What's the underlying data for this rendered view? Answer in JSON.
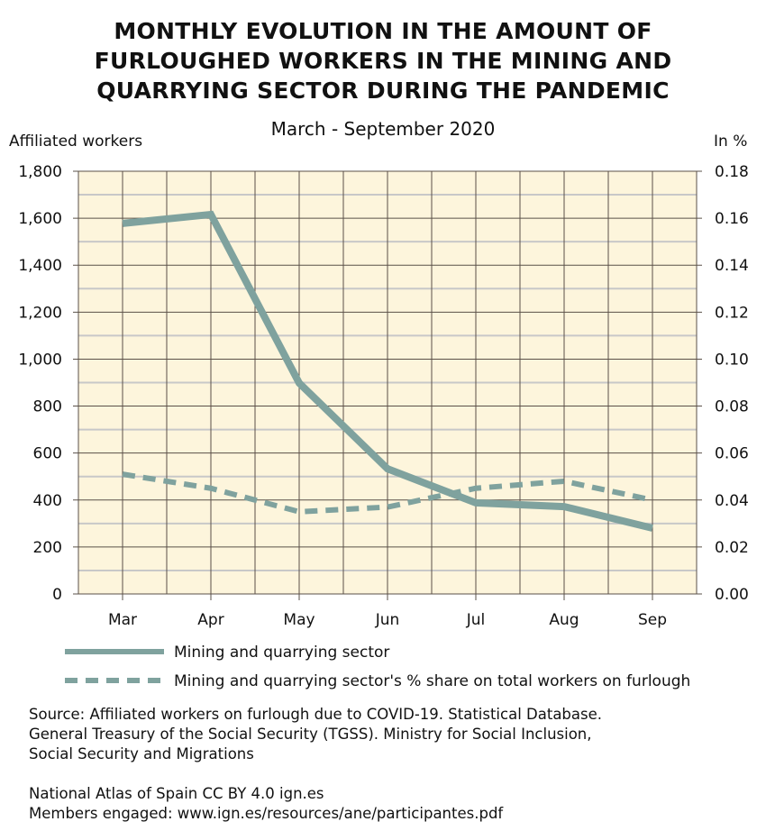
{
  "chart_data": {
    "type": "line",
    "title": "MONTHLY EVOLUTION IN THE AMOUNT OF FURLOUGHED WORKERS IN THE MINING AND QUARRYING SECTOR DURING THE PANDEMIC",
    "title_lines": [
      "MONTHLY EVOLUTION IN THE AMOUNT OF",
      "FURLOUGHED WORKERS IN THE MINING AND",
      "QUARRYING SECTOR DURING THE PANDEMIC"
    ],
    "subtitle": "March - September 2020",
    "ylabel_left": "Affiliated workers",
    "ylabel_right": "In %",
    "categories": [
      "Mar",
      "Apr",
      "May",
      "Jun",
      "Jul",
      "Aug",
      "Sep"
    ],
    "ylim_left": [
      0,
      1800
    ],
    "ylim_right": [
      0,
      0.18
    ],
    "yticks_left": [
      "0",
      "200",
      "400",
      "600",
      "800",
      "1,000",
      "1,200",
      "1,400",
      "1,600",
      "1,800"
    ],
    "yticks_right": [
      "0.00",
      "0.02",
      "0.04",
      "0.06",
      "0.08",
      "0.10",
      "0.12",
      "0.14",
      "0.16",
      "0.18"
    ],
    "grid": true,
    "legend_placement": "bottom",
    "series": [
      {
        "name": "Mining and quarrying sector",
        "axis": "left",
        "style": "solid",
        "color": "#7fa29e",
        "values": [
          1578,
          1616,
          898,
          533,
          388,
          372,
          280
        ]
      },
      {
        "name": "Mining and quarrying sector's % share on total workers on furlough",
        "axis": "right",
        "style": "dashed",
        "color": "#7fa29e",
        "values": [
          0.051,
          0.045,
          0.035,
          0.037,
          0.045,
          0.048,
          0.04
        ]
      }
    ]
  },
  "source": {
    "lines": [
      "Source: Affiliated workers on furlough due to COVID-19. Statistical Database.",
      "General Treasury of the Social Security (TGSS). Ministry for Social Inclusion,",
      "Social Security and Migrations"
    ],
    "credit": [
      "National Atlas of Spain CC BY 4.0 ign.es",
      "Members engaged: www.ign.es/resources/ane/participantes.pdf"
    ]
  },
  "colors": {
    "plot_bg": "#fdf5dc",
    "grid_major": "#5a5048",
    "grid_minor": "#c8c8c8"
  }
}
